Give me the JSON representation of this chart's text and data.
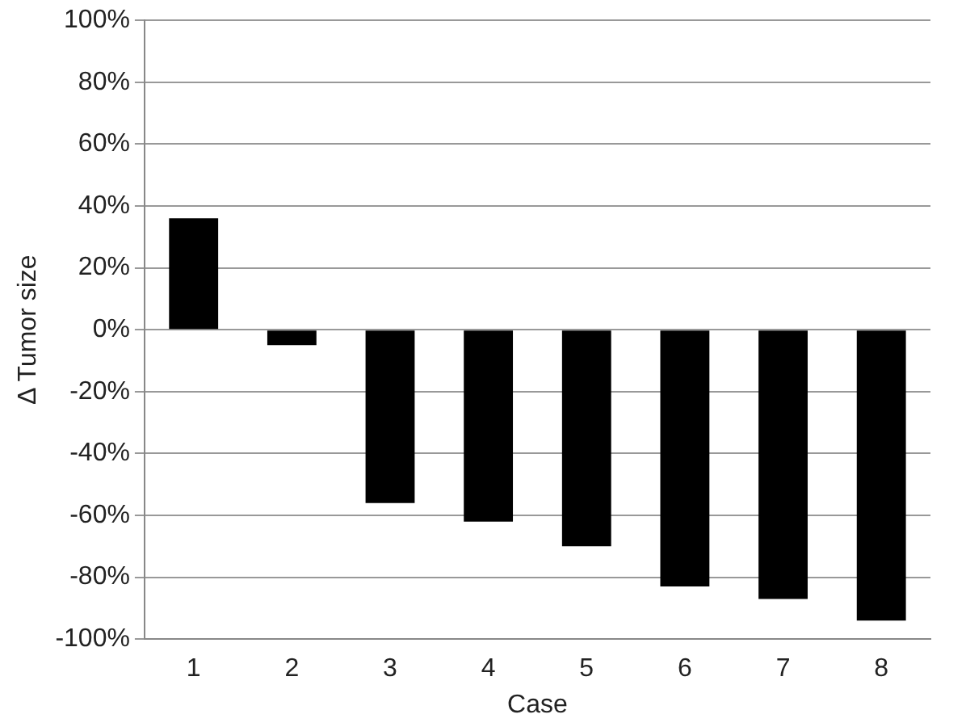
{
  "chart_data": {
    "type": "bar",
    "xlabel": "Case",
    "ylabel": "Δ Tumor size",
    "categories": [
      "1",
      "2",
      "3",
      "4",
      "5",
      "6",
      "7",
      "8"
    ],
    "values": [
      36,
      -5,
      -56,
      -62,
      -70,
      -83,
      -87,
      -94
    ],
    "color": "#000000",
    "ylim": [
      -100,
      100
    ],
    "yticks": [
      {
        "value": -100,
        "label": "-100%"
      },
      {
        "value": -80,
        "label": "-80%"
      },
      {
        "value": -60,
        "label": "-60%"
      },
      {
        "value": -40,
        "label": "-40%"
      },
      {
        "value": -20,
        "label": "-20%"
      },
      {
        "value": 0,
        "label": "0%"
      },
      {
        "value": 20,
        "label": "20%"
      },
      {
        "value": 40,
        "label": "40%"
      },
      {
        "value": 60,
        "label": "60%"
      },
      {
        "value": 80,
        "label": "80%"
      },
      {
        "value": 100,
        "label": "100%"
      }
    ],
    "grid": "y"
  }
}
